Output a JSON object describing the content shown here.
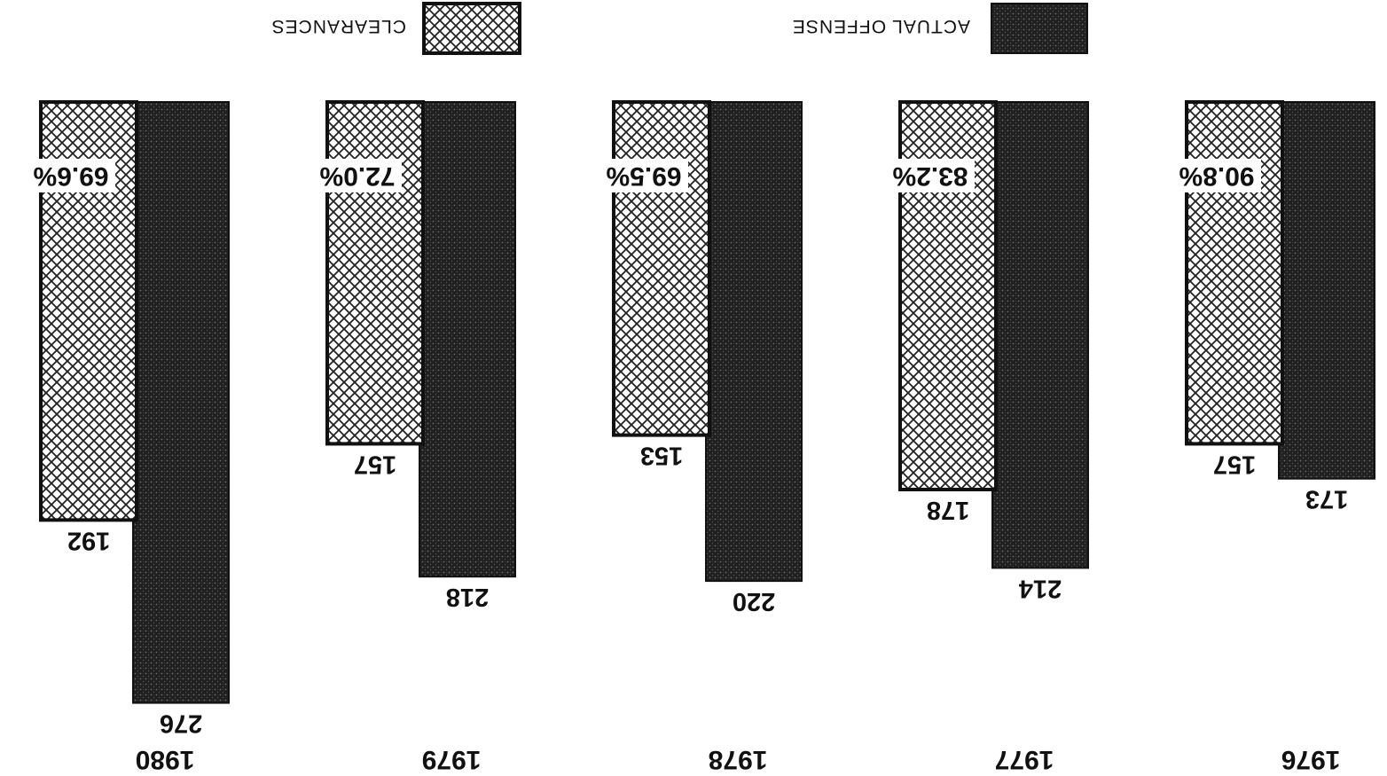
{
  "chart_data": {
    "type": "bar",
    "orientation_note": "printed upside-down",
    "categories": [
      "1976",
      "1977",
      "1978",
      "1979",
      "1980"
    ],
    "series": [
      {
        "name": "ACTUAL OFFENSE",
        "values": [
          173,
          214,
          220,
          218,
          276
        ],
        "color": "#2a2a2a",
        "pattern": "dark-stipple"
      },
      {
        "name": "CLEARANCES",
        "values": [
          157,
          178,
          153,
          157,
          192
        ],
        "color": "#ffffff",
        "pattern": "crosshatch"
      }
    ],
    "clearance_rates": [
      "90.8%",
      "83.2%",
      "69.5%",
      "72.0%",
      "69.6%"
    ],
    "title": "",
    "xlabel": "",
    "ylabel": "",
    "ylim": [
      0,
      300
    ],
    "grid": false,
    "legend_position": "bottom"
  }
}
